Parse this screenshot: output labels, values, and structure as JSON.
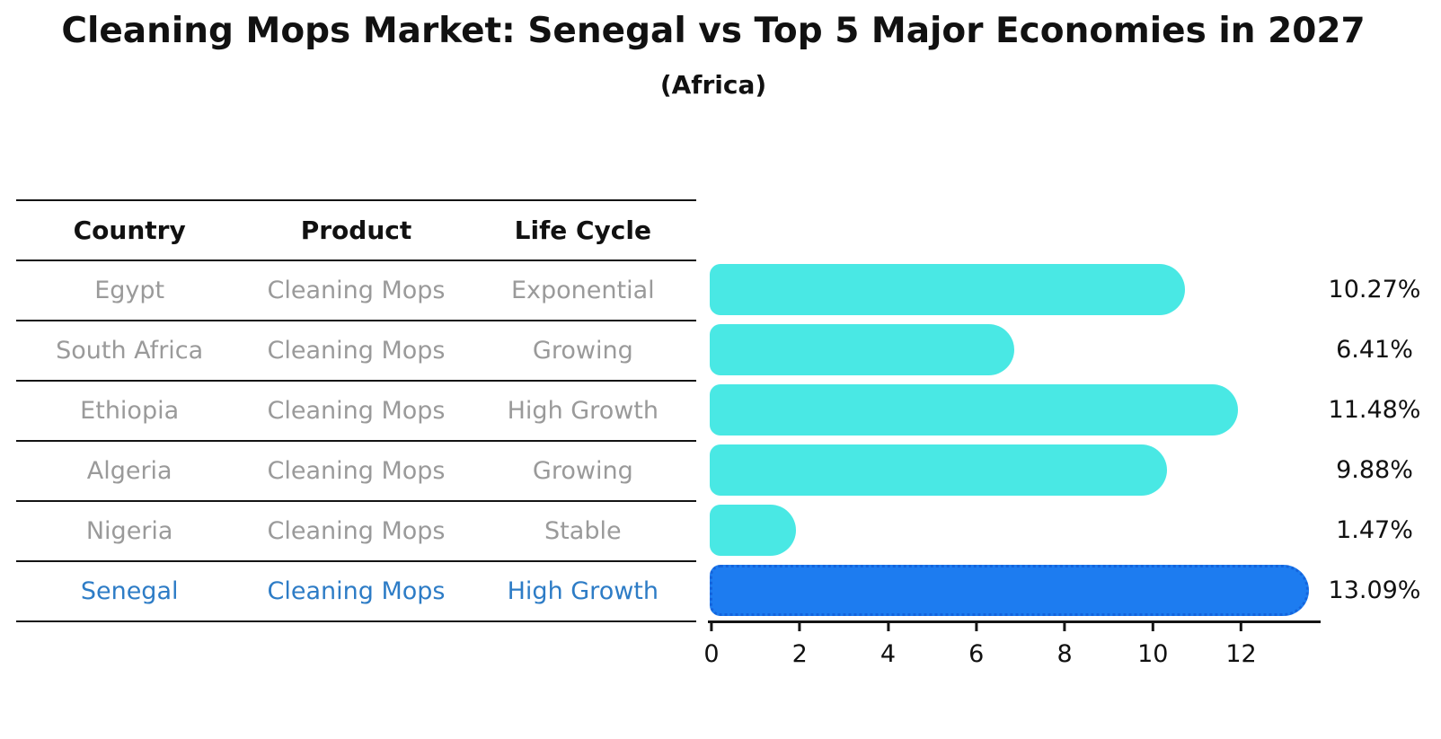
{
  "chart_data": {
    "type": "bar",
    "orientation": "horizontal",
    "title": "Cleaning Mops Market: Senegal vs Top 5 Major Economies in 2027",
    "subtitle": "(Africa)",
    "categories": [
      "Egypt",
      "South Africa",
      "Ethiopia",
      "Algeria",
      "Nigeria",
      "Senegal"
    ],
    "values": [
      10.27,
      6.41,
      11.48,
      9.88,
      1.47,
      13.09
    ],
    "value_labels": [
      "10.27%",
      "6.41%",
      "11.48%",
      "9.88%",
      "1.47%",
      "13.09%"
    ],
    "x_ticks": [
      0,
      2,
      4,
      6,
      8,
      10,
      12
    ],
    "xlim": [
      0,
      13.8
    ],
    "xlabel": "",
    "ylabel": "",
    "grid": false,
    "legend": false,
    "highlight_index": 5
  },
  "table": {
    "headers": [
      "Country",
      "Product",
      "Life Cycle"
    ],
    "rows": [
      {
        "country": "Egypt",
        "product": "Cleaning Mops",
        "life_cycle": "Exponential",
        "highlight": false
      },
      {
        "country": "South Africa",
        "product": "Cleaning Mops",
        "life_cycle": "Growing",
        "highlight": false
      },
      {
        "country": "Ethiopia",
        "product": "Cleaning Mops",
        "life_cycle": "High Growth",
        "highlight": false
      },
      {
        "country": "Algeria",
        "product": "Cleaning Mops",
        "life_cycle": "Growing",
        "highlight": false
      },
      {
        "country": "Nigeria",
        "product": "Cleaning Mops",
        "life_cycle": "Stable",
        "highlight": false
      },
      {
        "country": "Senegal",
        "product": "Cleaning Mops",
        "life_cycle": "High Growth",
        "highlight": true
      }
    ]
  },
  "colors": {
    "bar": "#49e8e4",
    "highlight": "#1d7cf0",
    "highlight_edge": "#1464dc",
    "ink": "#111111",
    "muted": "#9a9a9a",
    "accent_text": "#2d7cc6",
    "line": "#141414"
  }
}
